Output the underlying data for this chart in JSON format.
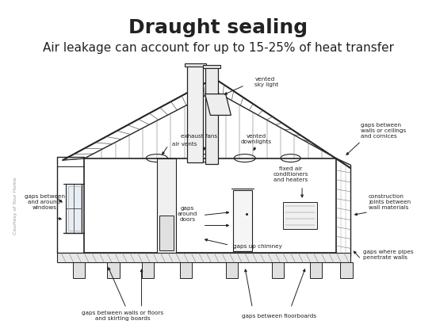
{
  "title": "Draught sealing",
  "subtitle": "Air leakage can account for up to 15-25% of heat transfer",
  "title_fontsize": 18,
  "subtitle_fontsize": 11,
  "bg_color": "#ffffff",
  "line_color": "#222222",
  "text_color": "#222222",
  "label_fontsize": 5.5,
  "watermark": "Courtesy of Your Home",
  "fig_w": 5.5,
  "fig_h": 4.19,
  "dpi": 100
}
